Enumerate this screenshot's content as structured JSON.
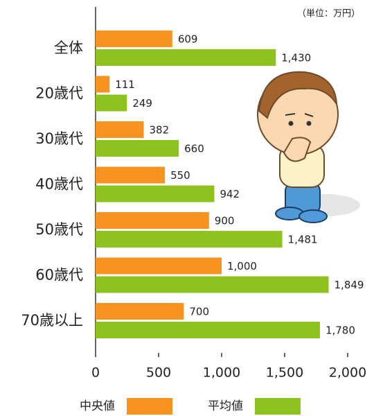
{
  "chart_data": {
    "type": "barh",
    "unit_note": "（単位：万円）",
    "categories": [
      "全体",
      "20歳代",
      "30歳代",
      "40歳代",
      "50歳代",
      "60歳代",
      "70歳以上"
    ],
    "series": [
      {
        "name": "中央値",
        "color": "#f7931e",
        "values": [
          609,
          111,
          382,
          550,
          900,
          1000,
          700
        ],
        "value_labels": [
          "609",
          "111",
          "382",
          "550",
          "900",
          "1,000",
          "700"
        ]
      },
      {
        "name": "平均値",
        "color": "#8dc21f",
        "values": [
          1430,
          249,
          660,
          942,
          1481,
          1849,
          1780
        ],
        "value_labels": [
          "1,430",
          "249",
          "660",
          "942",
          "1,481",
          "1,849",
          "1,780"
        ]
      }
    ],
    "xlim": [
      0,
      2000
    ],
    "xticks": [
      0,
      500,
      {
        "value": 1000,
        "label": "1,000"
      },
      {
        "value": 1500,
        "label": "1,500"
      },
      {
        "value": 2000,
        "label": "2,000"
      }
    ],
    "grid": false
  }
}
